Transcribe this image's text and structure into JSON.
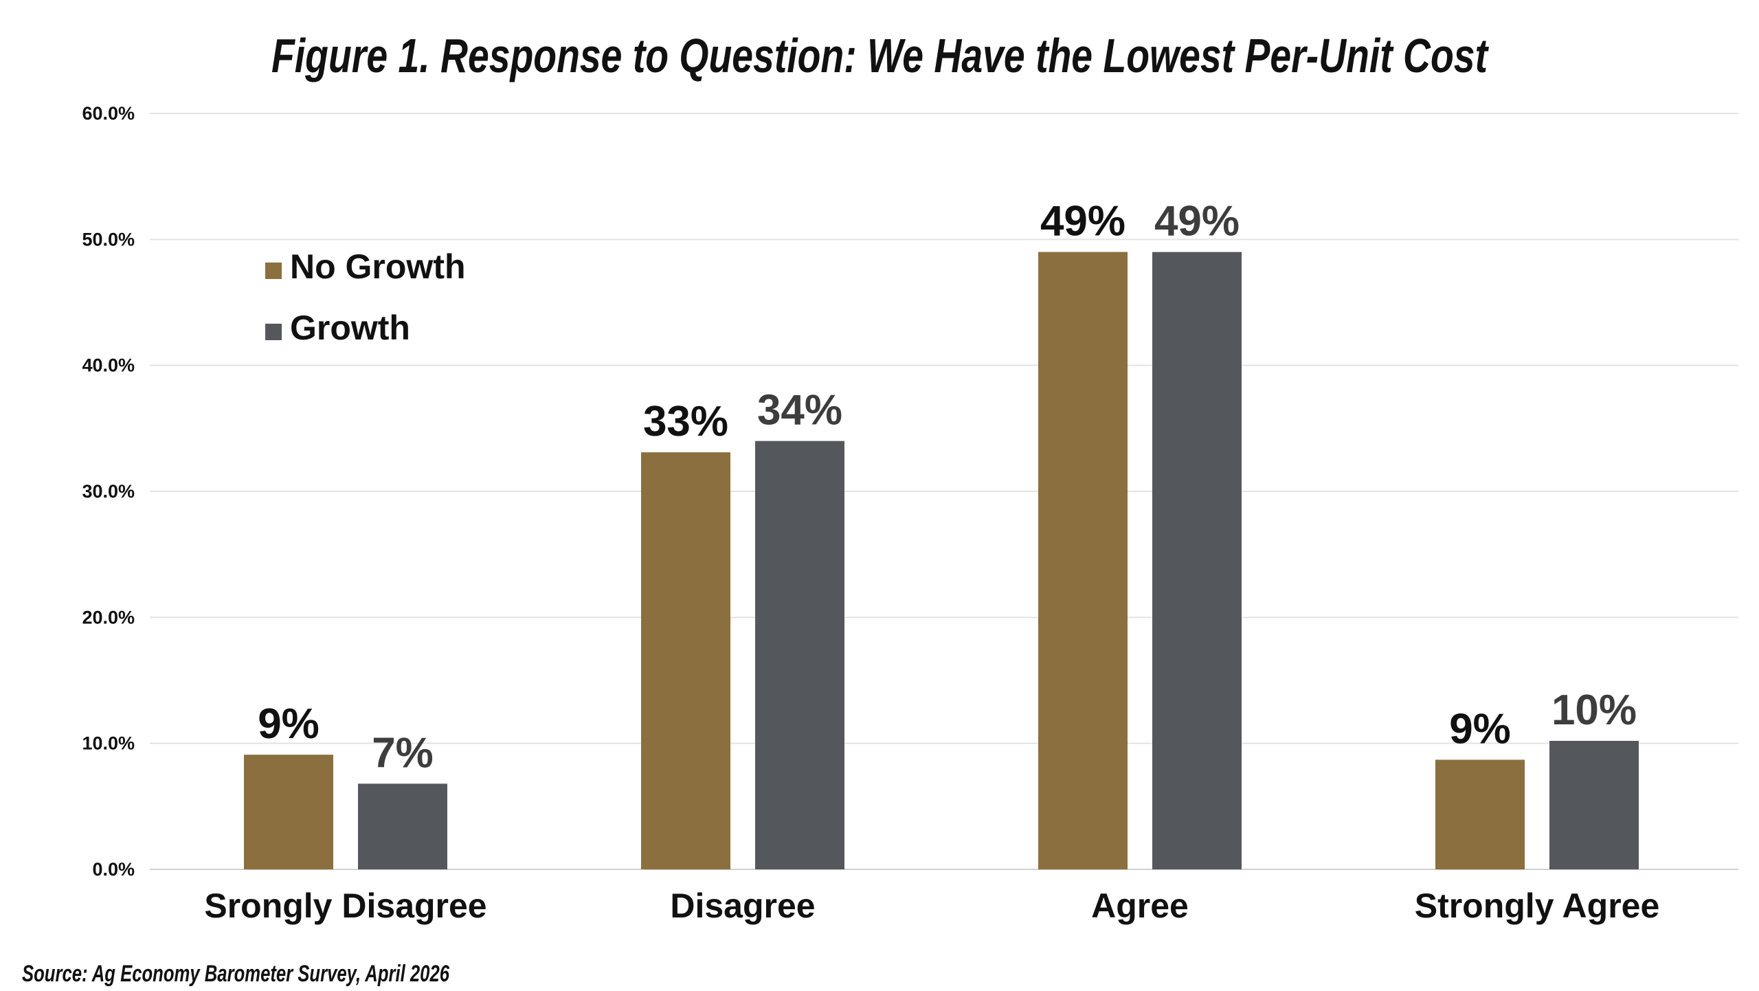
{
  "chart_data": {
    "type": "bar",
    "title": "Figure 1. Response to Question: We Have the Lowest Per-Unit Cost",
    "xlabel": "",
    "ylabel": "",
    "ylim": [
      0,
      60
    ],
    "yticks": [
      "0.0%",
      "10.0%",
      "20.0%",
      "30.0%",
      "40.0%",
      "50.0%",
      "60.0%"
    ],
    "ytick_values": [
      0,
      10,
      20,
      30,
      40,
      50,
      60
    ],
    "categories": [
      "Srongly Disagree",
      "Disagree",
      "Agree",
      "Strongly Agree"
    ],
    "series": [
      {
        "name": "No Growth",
        "color": "#8c6f3e",
        "label_color": "#111111",
        "values": [
          9.1,
          33.1,
          49.0,
          8.7
        ],
        "labels": [
          "9%",
          "33%",
          "49%",
          "9%"
        ]
      },
      {
        "name": "Growth",
        "color": "#54585d",
        "label_color": "#3d3d3d",
        "values": [
          6.8,
          34.0,
          49.0,
          10.2
        ],
        "labels": [
          "7%",
          "34%",
          "49%",
          "10%"
        ]
      }
    ],
    "grid": true,
    "legend_position": "top-left"
  },
  "source": "Source: Ag Economy Barometer Survey, April 2026"
}
